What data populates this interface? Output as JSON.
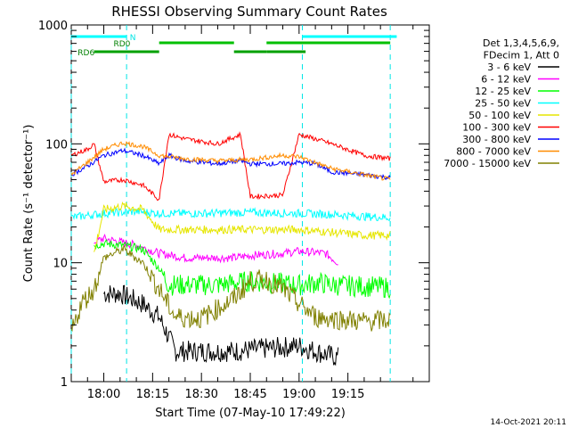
{
  "chart_data": {
    "type": "line",
    "title": "RHESSI Observing Summary Count Rates",
    "xlabel": "Start Time (07-May-10 17:49:22)",
    "ylabel": "Count Rate (s⁻¹ detector⁻¹)",
    "yscale": "log",
    "ylim": [
      1,
      1000
    ],
    "xlim_minutes": [
      -10,
      100
    ],
    "x_ticks": [
      {
        "label": "18:00",
        "min": 0
      },
      {
        "label": "18:15",
        "min": 15
      },
      {
        "label": "18:30",
        "min": 30
      },
      {
        "label": "18:45",
        "min": 45
      },
      {
        "label": "19:00",
        "min": 60
      },
      {
        "label": "19:15",
        "min": 75
      }
    ],
    "y_ticks": [
      {
        "label": "1",
        "value": 1
      },
      {
        "label": "10",
        "value": 10
      },
      {
        "label": "100",
        "value": 100
      },
      {
        "label": "1000",
        "value": 1000
      }
    ],
    "legend_header": [
      "Det 1,3,4,5,6,9,",
      "FDecim 1, Att 0"
    ],
    "series": [
      {
        "name": "3 - 6 keV",
        "color": "#000000",
        "x": [
          0,
          5,
          12,
          17,
          22,
          40,
          50,
          60,
          68,
          72
        ],
        "values": [
          5.5,
          5.5,
          4.5,
          3.5,
          1.8,
          1.8,
          1.9,
          2.0,
          1.7,
          1.6
        ]
      },
      {
        "name": "6 - 12 keV",
        "color": "#ff00ff",
        "x": [
          -3,
          0,
          5,
          10,
          17,
          25,
          40,
          45,
          55,
          60,
          68,
          72
        ],
        "values": [
          15,
          16,
          15,
          14,
          12,
          11,
          11,
          11.5,
          12,
          12.5,
          12,
          10
        ]
      },
      {
        "name": "12 - 25 keV",
        "color": "#00ff00",
        "x": [
          -3,
          0,
          6,
          12,
          17,
          20,
          35,
          45,
          60,
          66,
          70,
          88
        ],
        "values": [
          14,
          14.5,
          14,
          13,
          9,
          6.5,
          6.5,
          7,
          6.5,
          6.8,
          6.5,
          6.2
        ]
      },
      {
        "name": "25 - 50 keV",
        "color": "#00ffff",
        "x": [
          -10,
          -5,
          0,
          10,
          17,
          30,
          45,
          60,
          70,
          80,
          88
        ],
        "values": [
          24,
          25,
          26,
          27,
          26,
          26,
          26.5,
          26,
          25.5,
          24.5,
          24
        ]
      },
      {
        "name": "50 - 100 keV",
        "color": "#e6e600",
        "x": [
          -3,
          0,
          6,
          12,
          17,
          30,
          42,
          45,
          60,
          70,
          80,
          88
        ],
        "values": [
          12,
          28,
          30,
          28,
          19,
          19,
          19,
          19,
          19,
          18,
          17,
          17
        ]
      },
      {
        "name": "100 - 300 keV",
        "color": "#ff0000",
        "x": [
          -10,
          -5,
          -3,
          0,
          6,
          12,
          17,
          20,
          25,
          35,
          42,
          45,
          55,
          60,
          65,
          70,
          80,
          88
        ],
        "values": [
          80,
          90,
          100,
          48,
          50,
          45,
          34,
          120,
          110,
          100,
          120,
          36,
          37,
          120,
          110,
          100,
          80,
          75
        ]
      },
      {
        "name": "300 - 800 keV",
        "color": "#0000ff",
        "x": [
          -10,
          -5,
          0,
          6,
          12,
          17,
          20,
          25,
          35,
          42,
          45,
          55,
          60,
          65,
          70,
          80,
          88
        ],
        "values": [
          55,
          65,
          80,
          88,
          80,
          68,
          80,
          72,
          68,
          72,
          68,
          68,
          70,
          68,
          58,
          55,
          52
        ]
      },
      {
        "name": "800 - 7000 keV",
        "color": "#ff8c00",
        "x": [
          -10,
          -5,
          0,
          6,
          12,
          17,
          25,
          35,
          45,
          55,
          60,
          70,
          80,
          88
        ],
        "values": [
          55,
          70,
          90,
          102,
          95,
          80,
          75,
          72,
          74,
          80,
          78,
          62,
          55,
          50
        ]
      },
      {
        "name": "7000 - 15000 keV",
        "color": "#808000",
        "x": [
          -10,
          -7,
          -3,
          0,
          6,
          12,
          17,
          22,
          30,
          40,
          45,
          50,
          55,
          60,
          65,
          70,
          80,
          88
        ],
        "values": [
          2.5,
          4.5,
          6,
          11,
          13,
          10,
          6,
          3.5,
          3.4,
          5,
          7,
          7.2,
          6,
          4.5,
          3.5,
          3.4,
          3.2,
          3.3
        ]
      }
    ],
    "vertical_markers_min": [
      -10,
      7,
      61,
      88
    ],
    "vertical_markers_style": "dashed cyan",
    "top_bars": [
      {
        "name": "RD0",
        "color": "#00c000",
        "segments": [
          [
            17,
            40
          ],
          [
            50,
            88
          ]
        ]
      },
      {
        "name": "RD6",
        "color": "#00a000",
        "segments": [
          [
            -3,
            17
          ],
          [
            40,
            50
          ],
          [
            50,
            62
          ]
        ]
      },
      {
        "name": "N",
        "color": "#00ffff",
        "segments": [
          [
            -10,
            7
          ],
          [
            61,
            90
          ]
        ]
      }
    ],
    "top_bar_labels": [
      "N",
      "RD0",
      "RD6"
    ],
    "grid": false,
    "legend_position": "right"
  },
  "footer": {
    "timestamp": "14-Oct-2021 20:11"
  }
}
